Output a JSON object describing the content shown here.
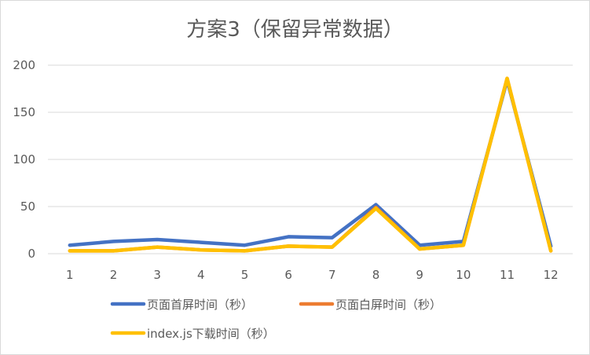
{
  "chart_data": {
    "type": "line",
    "title": "方案3（保留异常数据）",
    "xlabel": "",
    "ylabel": "",
    "categories": [
      "1",
      "2",
      "3",
      "4",
      "5",
      "6",
      "7",
      "8",
      "9",
      "10",
      "11",
      "12"
    ],
    "ylim": [
      0,
      200
    ],
    "yticks": [
      0,
      50,
      100,
      150,
      200
    ],
    "grid": true,
    "legend_position": "bottom",
    "series": [
      {
        "name": "页面首屏时间（秒）",
        "color": "#4472c4",
        "values": [
          9,
          13,
          15,
          12,
          9,
          18,
          17,
          52,
          9,
          13,
          184,
          8
        ]
      },
      {
        "name": "页面白屏时间（秒）",
        "color": "#ed7d31",
        "values": [
          3,
          3,
          7,
          4,
          3,
          8,
          7,
          49,
          5,
          9,
          186,
          3
        ]
      },
      {
        "name": "index.js下载时间（秒）",
        "color": "#ffc000",
        "values": [
          3,
          3,
          7,
          4,
          3,
          8,
          7,
          48,
          5,
          9,
          186,
          3
        ]
      }
    ]
  }
}
